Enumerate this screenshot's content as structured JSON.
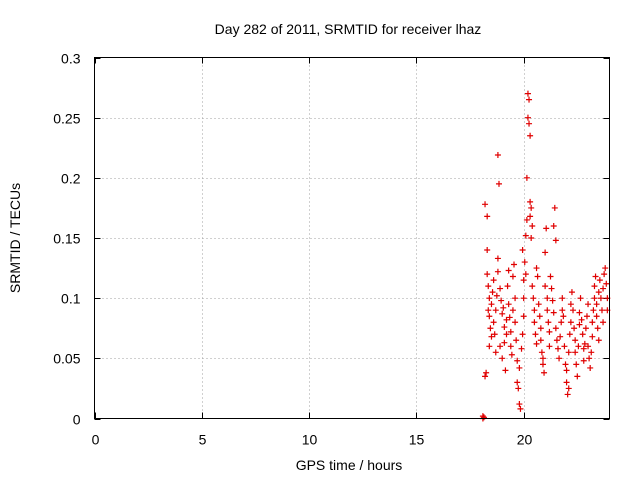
{
  "chart_data": {
    "type": "scatter",
    "title": "Day 282 of 2011, SRMTID for receiver lhaz",
    "xlabel": "GPS time / hours",
    "ylabel": "SRMTID / TECUs",
    "xlim": [
      0,
      24
    ],
    "ylim": [
      0,
      0.3
    ],
    "x_ticks": [
      0,
      5,
      10,
      15,
      20
    ],
    "x_tick_labels": [
      "0",
      "5",
      "10",
      "15",
      "20"
    ],
    "y_ticks": [
      0,
      0.05,
      0.1,
      0.15,
      0.2,
      0.25,
      0.3
    ],
    "y_tick_labels": [
      "0",
      "0.05",
      "0.1",
      "0.15",
      "0.2",
      "0.25",
      "0.3"
    ],
    "grid": true,
    "marker": "+",
    "series": [
      {
        "name": "SRMTID",
        "color": "#e00000",
        "points": [
          [
            18.1,
            0.0
          ],
          [
            18.1,
            0.002
          ],
          [
            18.15,
            0.001
          ],
          [
            18.2,
            0.035
          ],
          [
            18.25,
            0.038
          ],
          [
            18.2,
            0.178
          ],
          [
            18.3,
            0.168
          ],
          [
            18.3,
            0.14
          ],
          [
            18.3,
            0.12
          ],
          [
            18.35,
            0.11
          ],
          [
            18.4,
            0.1
          ],
          [
            18.35,
            0.09
          ],
          [
            18.4,
            0.085
          ],
          [
            18.45,
            0.075
          ],
          [
            18.5,
            0.068
          ],
          [
            18.4,
            0.06
          ],
          [
            18.5,
            0.095
          ],
          [
            18.55,
            0.105
          ],
          [
            18.6,
            0.115
          ],
          [
            18.6,
            0.08
          ],
          [
            18.65,
            0.07
          ],
          [
            18.7,
            0.055
          ],
          [
            18.7,
            0.09
          ],
          [
            18.75,
            0.102
          ],
          [
            18.8,
            0.122
          ],
          [
            18.8,
            0.133
          ],
          [
            18.85,
            0.195
          ],
          [
            18.8,
            0.219
          ],
          [
            18.9,
            0.108
          ],
          [
            18.95,
            0.098
          ],
          [
            18.9,
            0.06
          ],
          [
            19.0,
            0.05
          ],
          [
            19.0,
            0.087
          ],
          [
            19.05,
            0.092
          ],
          [
            19.1,
            0.076
          ],
          [
            19.1,
            0.063
          ],
          [
            19.15,
            0.04
          ],
          [
            19.2,
            0.082
          ],
          [
            19.2,
            0.07
          ],
          [
            19.25,
            0.11
          ],
          [
            19.3,
            0.123
          ],
          [
            19.3,
            0.095
          ],
          [
            19.35,
            0.084
          ],
          [
            19.4,
            0.072
          ],
          [
            19.4,
            0.06
          ],
          [
            19.45,
            0.053
          ],
          [
            19.5,
            0.09
          ],
          [
            19.5,
            0.118
          ],
          [
            19.55,
            0.128
          ],
          [
            19.6,
            0.1
          ],
          [
            19.6,
            0.08
          ],
          [
            19.65,
            0.065
          ],
          [
            19.7,
            0.048
          ],
          [
            19.7,
            0.03
          ],
          [
            19.75,
            0.025
          ],
          [
            19.8,
            0.012
          ],
          [
            19.85,
            0.008
          ],
          [
            19.8,
            0.042
          ],
          [
            19.9,
            0.058
          ],
          [
            19.95,
            0.07
          ],
          [
            20.0,
            0.085
          ],
          [
            20.0,
            0.1
          ],
          [
            20.0,
            0.115
          ],
          [
            19.95,
            0.14
          ],
          [
            20.05,
            0.13
          ],
          [
            20.1,
            0.12
          ],
          [
            20.1,
            0.152
          ],
          [
            20.15,
            0.165
          ],
          [
            20.15,
            0.2
          ],
          [
            20.2,
            0.27
          ],
          [
            20.25,
            0.265
          ],
          [
            20.2,
            0.25
          ],
          [
            20.25,
            0.245
          ],
          [
            20.3,
            0.235
          ],
          [
            20.3,
            0.18
          ],
          [
            20.35,
            0.175
          ],
          [
            20.3,
            0.168
          ],
          [
            20.4,
            0.16
          ],
          [
            20.35,
            0.15
          ],
          [
            20.4,
            0.11
          ],
          [
            20.45,
            0.1
          ],
          [
            20.5,
            0.09
          ],
          [
            20.5,
            0.08
          ],
          [
            20.55,
            0.07
          ],
          [
            20.6,
            0.062
          ],
          [
            20.6,
            0.125
          ],
          [
            20.65,
            0.118
          ],
          [
            20.7,
            0.095
          ],
          [
            20.75,
            0.085
          ],
          [
            20.8,
            0.075
          ],
          [
            20.8,
            0.065
          ],
          [
            20.85,
            0.055
          ],
          [
            20.9,
            0.05
          ],
          [
            20.9,
            0.045
          ],
          [
            20.95,
            0.038
          ],
          [
            21.0,
            0.11
          ],
          [
            21.0,
            0.138
          ],
          [
            21.05,
            0.158
          ],
          [
            21.1,
            0.1
          ],
          [
            21.1,
            0.09
          ],
          [
            21.15,
            0.08
          ],
          [
            21.2,
            0.072
          ],
          [
            21.2,
            0.06
          ],
          [
            21.25,
            0.118
          ],
          [
            21.3,
            0.108
          ],
          [
            21.35,
            0.098
          ],
          [
            21.4,
            0.088
          ],
          [
            21.4,
            0.16
          ],
          [
            21.45,
            0.175
          ],
          [
            21.5,
            0.148
          ],
          [
            21.5,
            0.075
          ],
          [
            21.55,
            0.065
          ],
          [
            21.6,
            0.058
          ],
          [
            21.65,
            0.05
          ],
          [
            21.7,
            0.068
          ],
          [
            21.75,
            0.08
          ],
          [
            21.8,
            0.09
          ],
          [
            21.8,
            0.1
          ],
          [
            21.85,
            0.085
          ],
          [
            21.9,
            0.06
          ],
          [
            21.95,
            0.045
          ],
          [
            22.0,
            0.04
          ],
          [
            22.0,
            0.03
          ],
          [
            22.05,
            0.02
          ],
          [
            22.1,
            0.025
          ],
          [
            22.1,
            0.055
          ],
          [
            22.15,
            0.07
          ],
          [
            22.2,
            0.08
          ],
          [
            22.2,
            0.095
          ],
          [
            22.25,
            0.105
          ],
          [
            22.3,
            0.09
          ],
          [
            22.35,
            0.075
          ],
          [
            22.4,
            0.065
          ],
          [
            22.4,
            0.055
          ],
          [
            22.45,
            0.045
          ],
          [
            22.5,
            0.035
          ],
          [
            22.55,
            0.06
          ],
          [
            22.6,
            0.078
          ],
          [
            22.6,
            0.088
          ],
          [
            22.65,
            0.1
          ],
          [
            22.7,
            0.082
          ],
          [
            22.75,
            0.07
          ],
          [
            22.8,
            0.058
          ],
          [
            22.8,
            0.048
          ],
          [
            22.85,
            0.062
          ],
          [
            22.9,
            0.075
          ],
          [
            22.95,
            0.085
          ],
          [
            23.0,
            0.095
          ],
          [
            23.0,
            0.06
          ],
          [
            23.05,
            0.05
          ],
          [
            23.1,
            0.042
          ],
          [
            23.15,
            0.055
          ],
          [
            23.2,
            0.068
          ],
          [
            23.2,
            0.08
          ],
          [
            23.25,
            0.09
          ],
          [
            23.3,
            0.1
          ],
          [
            23.3,
            0.11
          ],
          [
            23.35,
            0.118
          ],
          [
            23.4,
            0.095
          ],
          [
            23.4,
            0.085
          ],
          [
            23.45,
            0.075
          ],
          [
            23.5,
            0.065
          ],
          [
            23.5,
            0.105
          ],
          [
            23.55,
            0.115
          ],
          [
            23.6,
            0.1
          ],
          [
            23.65,
            0.09
          ],
          [
            23.7,
            0.08
          ],
          [
            23.7,
            0.108
          ],
          [
            23.75,
            0.12
          ],
          [
            23.8,
            0.125
          ],
          [
            23.85,
            0.112
          ],
          [
            23.9,
            0.1
          ],
          [
            23.9,
            0.09
          ]
        ]
      }
    ]
  }
}
